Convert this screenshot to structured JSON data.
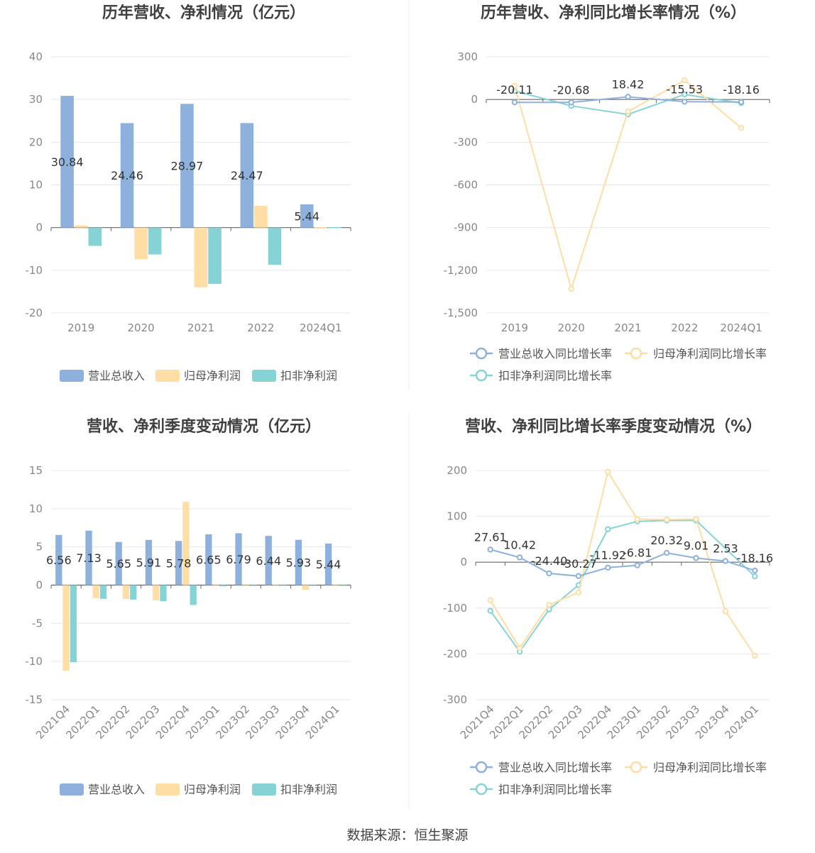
{
  "colors": {
    "revenue": "#8eb0dd",
    "net_profit": "#fedea5",
    "deducted_profit": "#86d3d6",
    "grid": "#e6e8ef",
    "axis": "#666666",
    "tick_text": "#888888",
    "title_text": "#404040",
    "label_text": "#333333",
    "divider": "#eeeeee"
  },
  "chart_data": [
    {
      "id": "annual-amount",
      "type": "bar",
      "title": "历年营收、净利情况（亿元）",
      "categories": [
        "2019",
        "2020",
        "2021",
        "2022",
        "2024Q1"
      ],
      "ylim": [
        -20,
        40
      ],
      "yticks": [
        40,
        30,
        20,
        10,
        0,
        -10,
        -20
      ],
      "ytick_labels": [
        "40",
        "30",
        "20",
        "10",
        "0",
        "-10",
        "-20"
      ],
      "series": [
        {
          "name": "营业总收入",
          "values": [
            30.84,
            24.46,
            28.97,
            24.47,
            5.44
          ],
          "labels": [
            "30.84",
            "24.46",
            "28.97",
            "24.47",
            "5.44"
          ]
        },
        {
          "name": "归母净利润",
          "values": [
            0.5,
            -7.4,
            -14.0,
            5.1,
            0.1
          ]
        },
        {
          "name": "扣非净利润",
          "values": [
            -4.3,
            -6.3,
            -13.2,
            -8.7,
            0.1
          ]
        }
      ],
      "grid": true,
      "legend": "bottom-center"
    },
    {
      "id": "annual-growth",
      "type": "line",
      "title": "历年营收、净利同比增长率情况（%）",
      "categories": [
        "2019",
        "2020",
        "2021",
        "2022",
        "2024Q1"
      ],
      "ylim": [
        -1500,
        300
      ],
      "yticks": [
        300,
        0,
        -300,
        -600,
        -900,
        -1200,
        -1500
      ],
      "ytick_labels": [
        "300",
        "0",
        "-300",
        "-600",
        "-900",
        "-1,200",
        "-1,500"
      ],
      "series": [
        {
          "name": "营业总收入同比增长率",
          "values": [
            -20.11,
            -20.68,
            18.42,
            -15.53,
            -18.16
          ],
          "labels": [
            "-20.11",
            "-20.68",
            "18.42",
            "-15.53",
            "-18.16"
          ]
        },
        {
          "name": "归母净利润同比增长率",
          "values": [
            95,
            -1330,
            -85,
            135,
            -200
          ]
        },
        {
          "name": "扣非净利润同比增长率",
          "values": [
            60,
            -45,
            -105,
            35,
            -25
          ]
        }
      ],
      "grid": true,
      "legend": "bottom-center"
    },
    {
      "id": "quarter-amount",
      "type": "bar",
      "title": "营收、净利季度变动情况（亿元）",
      "categories": [
        "2021Q4",
        "2022Q1",
        "2022Q2",
        "2022Q3",
        "2022Q4",
        "2023Q1",
        "2023Q2",
        "2023Q3",
        "2023Q4",
        "2024Q1"
      ],
      "ylim": [
        -15,
        15
      ],
      "yticks": [
        15,
        10,
        5,
        0,
        -5,
        -10,
        -15
      ],
      "ytick_labels": [
        "15",
        "10",
        "5",
        "0",
        "-5",
        "-10",
        "-15"
      ],
      "series": [
        {
          "name": "营业总收入",
          "values": [
            6.56,
            7.13,
            5.65,
            5.91,
            5.78,
            6.65,
            6.79,
            6.44,
            5.93,
            5.44
          ],
          "labels": [
            "6.56",
            "7.13",
            "5.65",
            "5.91",
            "5.78",
            "6.65",
            "6.79",
            "6.44",
            "5.93",
            "5.44"
          ]
        },
        {
          "name": "归母净利润",
          "values": [
            -11.2,
            -1.7,
            -1.8,
            -2.0,
            10.9,
            0.1,
            0.1,
            0.1,
            -0.6,
            0.1
          ]
        },
        {
          "name": "扣非净利润",
          "values": [
            -10.1,
            -1.8,
            -1.9,
            -2.1,
            -2.6,
            -0.15,
            -0.1,
            -0.1,
            -0.05,
            -0.05
          ]
        }
      ],
      "grid": true,
      "legend": "bottom-center"
    },
    {
      "id": "quarter-growth",
      "type": "line",
      "title": "营收、净利同比增长率季度变动情况（%）",
      "categories": [
        "2021Q4",
        "2022Q1",
        "2022Q2",
        "2022Q3",
        "2022Q4",
        "2023Q1",
        "2023Q2",
        "2023Q3",
        "2023Q4",
        "2024Q1"
      ],
      "ylim": [
        -300,
        200
      ],
      "yticks": [
        200,
        100,
        0,
        -100,
        -200,
        -300
      ],
      "ytick_labels": [
        "200",
        "100",
        "0",
        "-100",
        "-200",
        "-300"
      ],
      "series": [
        {
          "name": "营业总收入同比增长率",
          "values": [
            27.61,
            10.42,
            -24.4,
            -30.27,
            -11.92,
            -6.81,
            20.32,
            9.01,
            2.53,
            -18.16
          ],
          "labels": [
            "27.61",
            "10.42",
            "-24.40",
            "-30.27",
            "-11.92",
            "-6.81",
            "20.32",
            "9.01",
            "2.53",
            "-18.16"
          ]
        },
        {
          "name": "归母净利润同比增长率",
          "values": [
            -83,
            -187,
            -93,
            -66,
            197,
            94,
            93,
            94,
            -107,
            -204
          ]
        },
        {
          "name": "扣非净利润同比增长率",
          "values": [
            -106,
            -195,
            -103,
            -50,
            72,
            89,
            91,
            91,
            null,
            -31
          ]
        }
      ],
      "grid": true,
      "legend": "bottom-center"
    }
  ],
  "footer": {
    "source": "数据来源：恒生聚源"
  }
}
